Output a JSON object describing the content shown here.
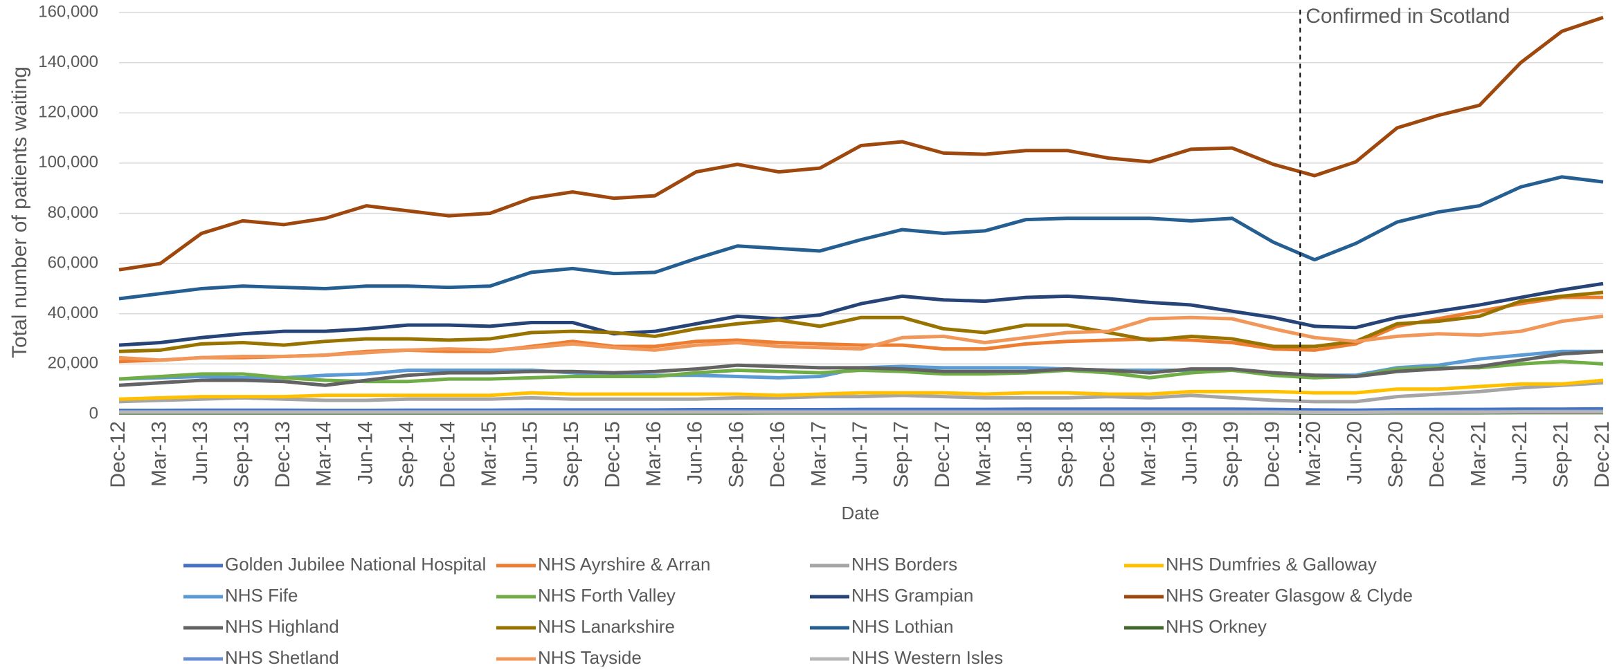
{
  "chart_data": {
    "type": "line",
    "y_label": "Total number of patients waiting",
    "x_label": "Date",
    "categories": [
      "Dec-12",
      "Mar-13",
      "Jun-13",
      "Sep-13",
      "Dec-13",
      "Mar-14",
      "Jun-14",
      "Sep-14",
      "Dec-14",
      "Mar-15",
      "Jun-15",
      "Sep-15",
      "Dec-15",
      "Mar-16",
      "Jun-16",
      "Sep-16",
      "Dec-16",
      "Mar-17",
      "Jun-17",
      "Sep-17",
      "Dec-17",
      "Mar-18",
      "Jun-18",
      "Sep-18",
      "Dec-18",
      "Mar-19",
      "Jun-19",
      "Sep-19",
      "Dec-19",
      "Mar-20",
      "Jun-20",
      "Sep-20",
      "Dec-20",
      "Mar-21",
      "Jun-21",
      "Sep-21",
      "Dec-21"
    ],
    "ylim": [
      0,
      160000
    ],
    "yticks": [
      0,
      {
        "value": 20000,
        "label": "20,000"
      },
      {
        "value": 40000,
        "label": "40,000"
      },
      {
        "value": 60000,
        "label": "60,000"
      },
      {
        "value": 80000,
        "label": "80,000"
      },
      {
        "value": 100000,
        "label": "100,000"
      },
      {
        "value": 120000,
        "label": "120,000"
      },
      {
        "value": 140000,
        "label": "140,000"
      },
      {
        "value": 160000,
        "label": "160,000"
      }
    ],
    "grid": true,
    "legend": "bottom",
    "annotation": {
      "label": "Confirmed in Scotland",
      "x": 28.65
    },
    "series": [
      {
        "name": "Golden Jubilee National Hospital",
        "color": "#4472c4",
        "values": [
          1500,
          1500,
          1600,
          1600,
          1600,
          1500,
          1500,
          1600,
          1600,
          1600,
          1700,
          1700,
          1700,
          1700,
          1800,
          1800,
          1800,
          1800,
          1900,
          1900,
          1900,
          1900,
          2000,
          2000,
          2000,
          2000,
          2000,
          2000,
          1900,
          1700,
          1600,
          1800,
          1900,
          1900,
          2000,
          2000,
          2100
        ]
      },
      {
        "name": "NHS Ayrshire & Arran",
        "color": "#ed7d31",
        "values": [
          21000,
          21500,
          22500,
          22500,
          23000,
          23500,
          25000,
          25500,
          25000,
          25000,
          27000,
          29000,
          27000,
          27000,
          29000,
          29500,
          28500,
          28000,
          27500,
          27500,
          26000,
          26000,
          28000,
          29000,
          29500,
          30000,
          29500,
          28500,
          26000,
          25500,
          28000,
          35000,
          38000,
          41000,
          44000,
          46500,
          46500
        ]
      },
      {
        "name": "NHS Borders",
        "color": "#a5a5a5",
        "values": [
          5000,
          5500,
          6000,
          6500,
          6000,
          5500,
          5500,
          6000,
          6000,
          6000,
          6500,
          6000,
          6000,
          6000,
          6000,
          6500,
          6500,
          7000,
          7000,
          7500,
          7000,
          6500,
          6500,
          6500,
          7000,
          6500,
          7500,
          6500,
          5500,
          5000,
          5000,
          7000,
          8000,
          9000,
          10500,
          11500,
          12500
        ]
      },
      {
        "name": "NHS Dumfries & Galloway",
        "color": "#ffc000",
        "values": [
          6000,
          6500,
          7000,
          7000,
          7000,
          7500,
          7500,
          7500,
          7500,
          7500,
          8500,
          8000,
          8000,
          8000,
          8000,
          8000,
          7500,
          8000,
          8500,
          8500,
          8500,
          8000,
          8500,
          8500,
          8000,
          8000,
          9000,
          9000,
          9000,
          8500,
          8500,
          10000,
          10000,
          11000,
          12000,
          12000,
          13500
        ]
      },
      {
        "name": "NHS Fife",
        "color": "#5b9bd5",
        "values": [
          14000,
          14500,
          15000,
          14500,
          14500,
          15500,
          16000,
          17500,
          17500,
          17500,
          17500,
          16500,
          15500,
          15500,
          15500,
          15000,
          14500,
          15000,
          18500,
          19000,
          18500,
          18500,
          18500,
          18000,
          17500,
          17500,
          17500,
          17500,
          16500,
          15500,
          15500,
          18500,
          19500,
          22000,
          23500,
          25000,
          25000
        ]
      },
      {
        "name": "NHS Forth Valley",
        "color": "#70ad47",
        "values": [
          14000,
          15000,
          16000,
          16000,
          14500,
          13500,
          13000,
          13000,
          14000,
          14000,
          14500,
          15000,
          15000,
          15000,
          16500,
          17500,
          17000,
          16500,
          17500,
          17000,
          16000,
          16000,
          16500,
          17500,
          16500,
          14500,
          16500,
          17500,
          15500,
          14500,
          15000,
          18000,
          18500,
          18500,
          20000,
          21000,
          20000
        ]
      },
      {
        "name": "NHS Grampian",
        "color": "#264478",
        "values": [
          27500,
          28500,
          30500,
          32000,
          33000,
          33000,
          34000,
          35500,
          35500,
          35000,
          36500,
          36500,
          32000,
          33000,
          36000,
          39000,
          38000,
          39500,
          44000,
          47000,
          45500,
          45000,
          46500,
          47000,
          46000,
          44500,
          43500,
          41000,
          38500,
          35000,
          34500,
          38500,
          41000,
          43500,
          46500,
          49500,
          52000
        ]
      },
      {
        "name": "NHS Greater Glasgow & Clyde",
        "color": "#9e480e",
        "values": [
          57500,
          60000,
          72000,
          77000,
          75500,
          78000,
          83000,
          81000,
          79000,
          80000,
          86000,
          88500,
          86000,
          87000,
          96500,
          99500,
          96500,
          98000,
          107000,
          108500,
          104000,
          103500,
          105000,
          105000,
          102000,
          100500,
          105500,
          106000,
          99500,
          95000,
          100500,
          114000,
          119000,
          123000,
          140000,
          152500,
          158000
        ]
      },
      {
        "name": "NHS Highland",
        "color": "#636363",
        "values": [
          11500,
          12500,
          13500,
          13500,
          13000,
          11500,
          13500,
          15500,
          16500,
          16500,
          17000,
          17000,
          16500,
          17000,
          18000,
          19500,
          19000,
          18500,
          18500,
          18000,
          17000,
          17000,
          17000,
          18000,
          17500,
          16500,
          18000,
          18000,
          16500,
          15500,
          15000,
          17000,
          18000,
          19000,
          21500,
          24000,
          25000
        ]
      },
      {
        "name": "NHS Lanarkshire",
        "color": "#997300",
        "values": [
          25000,
          25500,
          28000,
          28500,
          27500,
          29000,
          30000,
          30000,
          29500,
          30000,
          32500,
          33000,
          32500,
          31000,
          34000,
          36000,
          37500,
          35000,
          38500,
          38500,
          34000,
          32500,
          35500,
          35500,
          32500,
          29500,
          31000,
          30000,
          27000,
          27000,
          29000,
          36000,
          37000,
          39000,
          45000,
          47000,
          48500
        ]
      },
      {
        "name": "NHS Lothian",
        "color": "#255e91",
        "values": [
          46000,
          48000,
          50000,
          51000,
          50500,
          50000,
          51000,
          51000,
          50500,
          51000,
          56500,
          58000,
          56000,
          56500,
          62000,
          67000,
          66000,
          65000,
          69500,
          73500,
          72000,
          73000,
          77500,
          78000,
          78000,
          78000,
          77000,
          78000,
          68500,
          61500,
          68000,
          76500,
          80500,
          83000,
          90500,
          94500,
          92500
        ]
      },
      {
        "name": "NHS Orkney",
        "color": "#43682b",
        "values": [
          500,
          500,
          500,
          500,
          500,
          500,
          500,
          500,
          500,
          500,
          500,
          500,
          500,
          500,
          500,
          500,
          600,
          600,
          600,
          600,
          600,
          600,
          600,
          600,
          600,
          600,
          600,
          600,
          600,
          500,
          500,
          600,
          600,
          600,
          700,
          700,
          700
        ]
      },
      {
        "name": "NHS Shetland",
        "color": "#698ed0",
        "values": [
          1000,
          1000,
          1000,
          1000,
          1000,
          1000,
          1000,
          1000,
          1000,
          1000,
          1000,
          1000,
          1000,
          1000,
          1100,
          1100,
          1100,
          1100,
          1100,
          1100,
          1100,
          1100,
          1100,
          1100,
          1100,
          1100,
          1100,
          1100,
          1000,
          900,
          900,
          1000,
          1000,
          1100,
          1100,
          1200,
          1200
        ]
      },
      {
        "name": "NHS Tayside",
        "color": "#f1975a",
        "values": [
          22500,
          21500,
          22500,
          23000,
          23000,
          23500,
          24500,
          25500,
          26000,
          25500,
          26500,
          28000,
          26500,
          25500,
          27500,
          28500,
          27000,
          26500,
          26000,
          30500,
          31000,
          28500,
          30500,
          32500,
          33000,
          38000,
          38500,
          38000,
          34000,
          30500,
          29000,
          31000,
          32000,
          31500,
          33000,
          37000,
          39000
        ]
      },
      {
        "name": "NHS Western Isles",
        "color": "#b7b7b7",
        "values": [
          800,
          800,
          800,
          800,
          800,
          800,
          800,
          800,
          800,
          800,
          800,
          800,
          800,
          800,
          800,
          800,
          800,
          800,
          800,
          800,
          800,
          800,
          800,
          800,
          800,
          800,
          800,
          800,
          800,
          700,
          700,
          800,
          800,
          800,
          900,
          900,
          900
        ]
      }
    ]
  }
}
